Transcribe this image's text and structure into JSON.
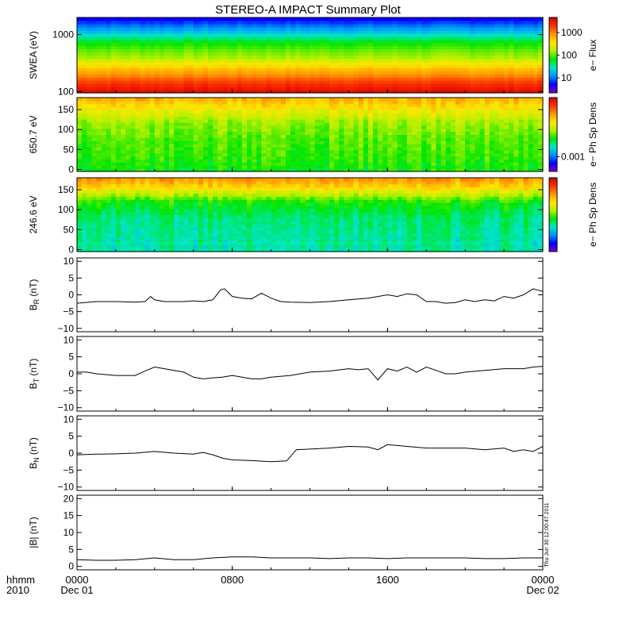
{
  "title": "STEREO-A IMPACT Summary Plot",
  "timestamp": "Thu Jun 30 12:00:47 2011",
  "colors": {
    "rainbow": [
      "#7a00c8",
      "#0000ff",
      "#0096ff",
      "#00e6c8",
      "#00e600",
      "#b4f000",
      "#ffe600",
      "#ff9600",
      "#ff3200",
      "#d20000"
    ],
    "trace": "#000000"
  },
  "chart_data": [
    {
      "type": "heatmap",
      "ylabel": "SWEA (eV)",
      "yscale": "log",
      "ylim": [
        95,
        2000
      ],
      "yticks": [
        100,
        1000
      ],
      "ytick_labels": [
        "100",
        "1000"
      ],
      "colorbar": {
        "label": "e− Flux",
        "tick_labels": [
          "10",
          "100",
          "1000"
        ],
        "tick_fracs": [
          0.2,
          0.5,
          0.8
        ]
      },
      "profile_energy": [
        100,
        200,
        400,
        700,
        1200,
        2000
      ],
      "profile_level": [
        0.97,
        0.78,
        0.55,
        0.45,
        0.25,
        0.08
      ]
    },
    {
      "type": "heatmap",
      "ylabel": "650.7 eV",
      "ylim": [
        -5,
        180
      ],
      "yticks": [
        0,
        50,
        100,
        150
      ],
      "ytick_labels": [
        "0",
        "50",
        "100",
        "150"
      ],
      "colorbar": {
        "label": "e− Ph Sp Dens",
        "tick_labels": [
          "0.001"
        ],
        "tick_fracs": [
          0.2
        ]
      },
      "profile_angle": [
        0,
        40,
        80,
        120,
        160,
        180
      ],
      "profile_level": [
        0.45,
        0.48,
        0.5,
        0.55,
        0.68,
        0.75
      ]
    },
    {
      "type": "heatmap",
      "ylabel": "246.6 eV",
      "ylim": [
        -5,
        180
      ],
      "yticks": [
        0,
        50,
        100,
        150
      ],
      "ytick_labels": [
        "0",
        "50",
        "100",
        "150"
      ],
      "colorbar": {
        "label": "e− Ph Sp Dens",
        "tick_labels": [],
        "tick_fracs": []
      },
      "profile_angle": [
        0,
        40,
        80,
        120,
        160,
        180
      ],
      "profile_level": [
        0.35,
        0.36,
        0.38,
        0.45,
        0.7,
        0.78
      ]
    },
    {
      "type": "line",
      "ylabel": "B_R (nT)",
      "label_main": "B",
      "label_sub": "R",
      "label_unit": " (nT)",
      "ylim": [
        -11,
        11
      ],
      "yticks": [
        -10,
        -5,
        0,
        5,
        10
      ],
      "ytick_labels": [
        "−10",
        "−5",
        "0",
        "5",
        "10"
      ],
      "x": [
        0,
        1,
        2,
        3,
        3.5,
        3.8,
        4,
        4.5,
        5,
        5.5,
        6,
        6.5,
        7,
        7.4,
        7.6,
        8,
        8.5,
        9,
        9.5,
        10,
        10.5,
        11,
        12,
        13,
        14,
        15,
        15.5,
        16,
        16.5,
        17,
        17.5,
        18,
        18.5,
        19,
        19.5,
        20,
        20.5,
        21,
        21.5,
        22,
        22.5,
        23,
        23.5,
        24
      ],
      "y": [
        -2.5,
        -2,
        -2,
        -2.2,
        -2,
        -0.5,
        -1.5,
        -2,
        -2,
        -2,
        -1.8,
        -2,
        -1.5,
        1.5,
        1.8,
        -0.5,
        -1,
        -1.2,
        0.5,
        -1,
        -2,
        -2.2,
        -2.3,
        -2,
        -1.5,
        -1,
        -0.5,
        0,
        -0.5,
        0.3,
        0,
        -2,
        -2,
        -2.5,
        -2.3,
        -1.5,
        -2,
        -1.5,
        -1.8,
        -0.5,
        -1,
        0,
        1.8,
        1.0
      ]
    },
    {
      "type": "line",
      "ylabel": "B_T (nT)",
      "label_main": "B",
      "label_sub": "T",
      "label_unit": " (nT)",
      "ylim": [
        -11,
        11
      ],
      "yticks": [
        -10,
        -5,
        0,
        5,
        10
      ],
      "ytick_labels": [
        "−10",
        "−5",
        "0",
        "5",
        "10"
      ],
      "x": [
        0,
        0.5,
        1,
        2,
        3,
        3.5,
        4,
        4.5,
        5,
        5.5,
        6,
        6.5,
        7,
        7.5,
        8,
        8.5,
        9,
        9.5,
        10,
        11,
        12,
        13,
        14,
        14.5,
        15,
        15.5,
        16,
        16.5,
        17,
        17.5,
        18,
        18.5,
        19,
        19.5,
        20,
        21,
        22,
        23,
        23.5,
        24
      ],
      "y": [
        0.5,
        0.5,
        0,
        -0.5,
        -0.5,
        0.8,
        2,
        1.5,
        1,
        0.5,
        -1,
        -1.5,
        -1.2,
        -1,
        -0.5,
        -1,
        -1.5,
        -1.5,
        -1,
        -0.5,
        0.5,
        0.8,
        1.5,
        1.2,
        1.5,
        -1.8,
        1.5,
        0.8,
        2,
        0.5,
        2,
        1,
        0,
        0,
        0.5,
        1,
        1.5,
        1.5,
        2,
        2.2
      ]
    },
    {
      "type": "line",
      "ylabel": "B_N (nT)",
      "label_main": "B",
      "label_sub": "N",
      "label_unit": " (nT)",
      "ylim": [
        -11,
        11
      ],
      "yticks": [
        -10,
        -5,
        0,
        5,
        10
      ],
      "ytick_labels": [
        "−10",
        "−5",
        "0",
        "5",
        "10"
      ],
      "x": [
        0,
        1,
        2,
        3,
        4,
        5,
        6,
        6.5,
        7,
        7.5,
        8,
        9,
        10,
        10.8,
        11,
        11.3,
        12,
        13,
        14,
        15,
        15.5,
        16,
        17,
        18,
        19,
        20,
        21,
        22,
        22.5,
        23,
        23.5,
        24
      ],
      "y": [
        -0.5,
        -0.3,
        -0.2,
        0,
        0.5,
        0,
        -0.3,
        0.2,
        -0.5,
        -1.5,
        -2,
        -2.2,
        -2.5,
        -2.3,
        -1,
        1,
        1.2,
        1.5,
        2,
        1.8,
        1,
        2.5,
        2,
        1.5,
        1.5,
        1.5,
        1,
        1.5,
        0.5,
        1,
        0.5,
        2
      ]
    },
    {
      "type": "line",
      "ylabel": "|B| (nT)",
      "label_main": "|B|",
      "label_sub": "",
      "label_unit": " (nT)",
      "ylim": [
        -1,
        21
      ],
      "yticks": [
        0,
        5,
        10,
        15,
        20
      ],
      "ytick_labels": [
        "0",
        "5",
        "10",
        "15",
        "20"
      ],
      "x": [
        0,
        1,
        2,
        3,
        4,
        5,
        6,
        7,
        8,
        9,
        10,
        11,
        12,
        13,
        14,
        15,
        16,
        17,
        18,
        19,
        20,
        21,
        22,
        23,
        24
      ],
      "y": [
        2,
        1.8,
        1.8,
        2,
        2.5,
        2,
        2,
        2.5,
        2.8,
        2.8,
        2.5,
        2.5,
        2.5,
        2.3,
        2.5,
        2.5,
        2.3,
        2.5,
        2.5,
        2.5,
        2.5,
        2.3,
        2.3,
        2.5,
        2.5
      ]
    }
  ],
  "xaxis": {
    "left_labels": [
      "hhmm",
      "2010"
    ],
    "ticks": [
      {
        "x": 0,
        "label": "0000",
        "sublabel": "Dec 01"
      },
      {
        "x": 8,
        "label": "0800",
        "sublabel": ""
      },
      {
        "x": 16,
        "label": "1600",
        "sublabel": ""
      },
      {
        "x": 24,
        "label": "0000",
        "sublabel": "Dec 02"
      }
    ],
    "range": [
      0,
      24
    ]
  }
}
